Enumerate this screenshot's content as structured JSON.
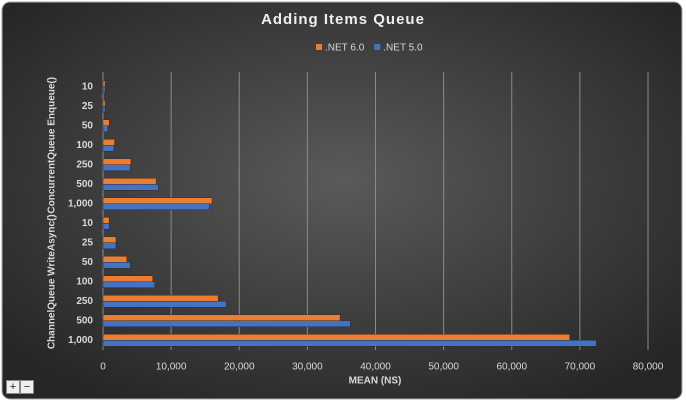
{
  "chart_data": {
    "type": "bar",
    "orientation": "horizontal",
    "title": "Adding Items Queue",
    "category_groups": [
      {
        "name": "ConcurrentQueue Enqueue()",
        "categories": [
          "10",
          "25",
          "50",
          "100",
          "250",
          "500",
          "1,000"
        ]
      },
      {
        "name": "ChannelQueue WriteAsync()",
        "categories": [
          "10",
          "25",
          "50",
          "100",
          "250",
          "500",
          "1,000"
        ]
      }
    ],
    "series": [
      {
        "name": ".NET 6.0",
        "color": "#ed7d31",
        "values": [
          300,
          300,
          900,
          1700,
          4100,
          7800,
          16000,
          900,
          1900,
          3500,
          7300,
          16900,
          34800,
          68500
        ]
      },
      {
        "name": ".NET 5.0",
        "color": "#4472c4",
        "values": [
          300,
          300,
          700,
          1600,
          4000,
          8100,
          15600,
          900,
          1900,
          4000,
          7600,
          18100,
          36300,
          72400
        ]
      }
    ],
    "x_label": "MEAN (NS)",
    "xlim": [
      0,
      80000
    ],
    "xticks": [
      0,
      {
        "value": 10000,
        "label": "10,000"
      },
      {
        "value": 20000,
        "label": "20,000"
      },
      {
        "value": 30000,
        "label": "30,000"
      },
      {
        "value": 40000,
        "label": "40,000"
      },
      {
        "value": 50000,
        "label": "50,000"
      },
      {
        "value": 60000,
        "label": "60,000"
      },
      {
        "value": 70000,
        "label": "70,000"
      },
      {
        "value": 80000,
        "label": "80,000"
      }
    ],
    "grid": true,
    "legend": "top"
  },
  "controls": [
    "+",
    "−"
  ]
}
